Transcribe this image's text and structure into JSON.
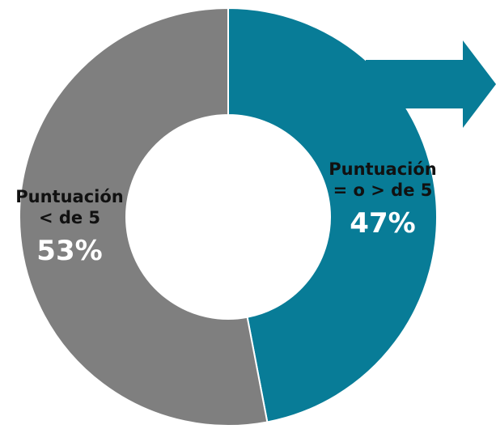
{
  "chart_data": {
    "type": "pie",
    "variant": "donut",
    "slices": [
      {
        "label_lines": [
          "Puntuación",
          "= o > de 5"
        ],
        "value": 47,
        "value_label": "47%",
        "color": "#087c97"
      },
      {
        "label_lines": [
          "Puntuación",
          "< de 5"
        ],
        "value": 53,
        "value_label": "53%",
        "color": "#7f7f7f"
      }
    ],
    "start_angle": "12 o'clock",
    "direction": "clockwise",
    "arrow": {
      "color": "#087c97",
      "direction": "right"
    }
  }
}
